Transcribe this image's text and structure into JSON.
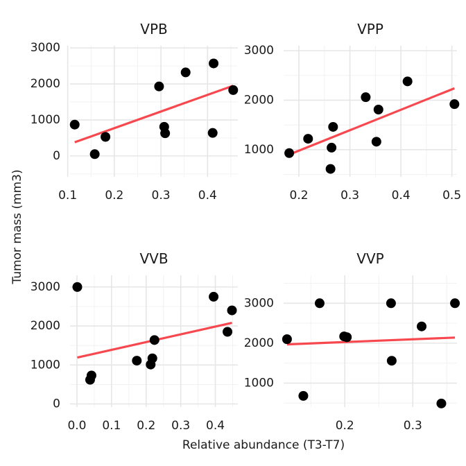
{
  "chart_data": {
    "type": "scatter",
    "xlabel": "Relative abundance (T3-T7)",
    "ylabel": "Tumor mass (mm3)",
    "facets": [
      {
        "title": "VPB",
        "xlim": [
          0.105,
          0.465
        ],
        "ylim": [
          -580,
          3060
        ],
        "xticks": [
          0.1,
          0.2,
          0.3,
          0.4
        ],
        "xtick_labels": [
          "0.1",
          "0.2",
          "0.3",
          "0.4"
        ],
        "yticks": [
          0,
          1000,
          2000,
          3000
        ],
        "ytick_labels": [
          "0",
          "1000",
          "2000",
          "3000"
        ],
        "points": [
          {
            "x": 0.115,
            "y": 870
          },
          {
            "x": 0.158,
            "y": 50
          },
          {
            "x": 0.181,
            "y": 530
          },
          {
            "x": 0.296,
            "y": 1930
          },
          {
            "x": 0.307,
            "y": 810
          },
          {
            "x": 0.309,
            "y": 630
          },
          {
            "x": 0.353,
            "y": 2320
          },
          {
            "x": 0.411,
            "y": 640
          },
          {
            "x": 0.413,
            "y": 2570
          },
          {
            "x": 0.455,
            "y": 1830
          }
        ],
        "fit": {
          "x": [
            0.115,
            0.455
          ],
          "y": [
            380,
            1950
          ]
        }
      },
      {
        "title": "VPP",
        "xlim": [
          0.17,
          0.51
        ],
        "ylim": [
          450,
          3100
        ],
        "xticks": [
          0.2,
          0.3,
          0.4,
          0.5
        ],
        "xtick_labels": [
          "0.2",
          "0.3",
          "0.4",
          "0.5"
        ],
        "yticks": [
          1000,
          2000,
          3000
        ],
        "ytick_labels": [
          "1000",
          "2000",
          "3000"
        ],
        "points": [
          {
            "x": 0.181,
            "y": 930
          },
          {
            "x": 0.218,
            "y": 1220
          },
          {
            "x": 0.262,
            "y": 610
          },
          {
            "x": 0.264,
            "y": 1040
          },
          {
            "x": 0.267,
            "y": 1460
          },
          {
            "x": 0.331,
            "y": 2060
          },
          {
            "x": 0.352,
            "y": 1160
          },
          {
            "x": 0.356,
            "y": 1810
          },
          {
            "x": 0.413,
            "y": 2380
          },
          {
            "x": 0.505,
            "y": 1920
          }
        ],
        "fit": {
          "x": [
            0.181,
            0.505
          ],
          "y": [
            900,
            2240
          ]
        }
      },
      {
        "title": "VVB",
        "xlim": [
          -0.02,
          0.465
        ],
        "ylim": [
          -80,
          3300
        ],
        "xticks": [
          0.0,
          0.1,
          0.2,
          0.3,
          0.4
        ],
        "xtick_labels": [
          "0.0",
          "0.1",
          "0.2",
          "0.3",
          "0.4"
        ],
        "yticks": [
          0,
          1000,
          2000,
          3000
        ],
        "ytick_labels": [
          "0",
          "1000",
          "2000",
          "3000"
        ],
        "points": [
          {
            "x": 0.001,
            "y": 3000
          },
          {
            "x": 0.038,
            "y": 620
          },
          {
            "x": 0.042,
            "y": 730
          },
          {
            "x": 0.173,
            "y": 1110
          },
          {
            "x": 0.213,
            "y": 1010
          },
          {
            "x": 0.218,
            "y": 1170
          },
          {
            "x": 0.224,
            "y": 1640
          },
          {
            "x": 0.395,
            "y": 2750
          },
          {
            "x": 0.435,
            "y": 1850
          },
          {
            "x": 0.448,
            "y": 2400
          }
        ],
        "fit": {
          "x": [
            0.001,
            0.448
          ],
          "y": [
            1190,
            2080
          ]
        }
      },
      {
        "title": "VVP",
        "xlim": [
          0.11,
          0.365
        ],
        "ylim": [
          400,
          3700
        ],
        "xticks": [
          0.2,
          0.3
        ],
        "xtick_labels": [
          "0.2",
          "0.3"
        ],
        "yticks": [
          1000,
          2000,
          3000
        ],
        "ytick_labels": [
          "1000",
          "2000",
          "3000"
        ],
        "points": [
          {
            "x": 0.115,
            "y": 2100
          },
          {
            "x": 0.139,
            "y": 680
          },
          {
            "x": 0.163,
            "y": 3000
          },
          {
            "x": 0.199,
            "y": 2170
          },
          {
            "x": 0.203,
            "y": 2150
          },
          {
            "x": 0.268,
            "y": 3000
          },
          {
            "x": 0.269,
            "y": 1560
          },
          {
            "x": 0.313,
            "y": 2420
          },
          {
            "x": 0.342,
            "y": 490
          },
          {
            "x": 0.362,
            "y": 3000
          }
        ],
        "fit": {
          "x": [
            0.115,
            0.362
          ],
          "y": [
            1970,
            2140
          ]
        }
      }
    ]
  },
  "colors": {
    "point": "#000000",
    "fit_line": "#f8484f",
    "grid_major": "#e6e6e6",
    "grid_minor": "#f0f0f0",
    "background": "#ffffff"
  }
}
